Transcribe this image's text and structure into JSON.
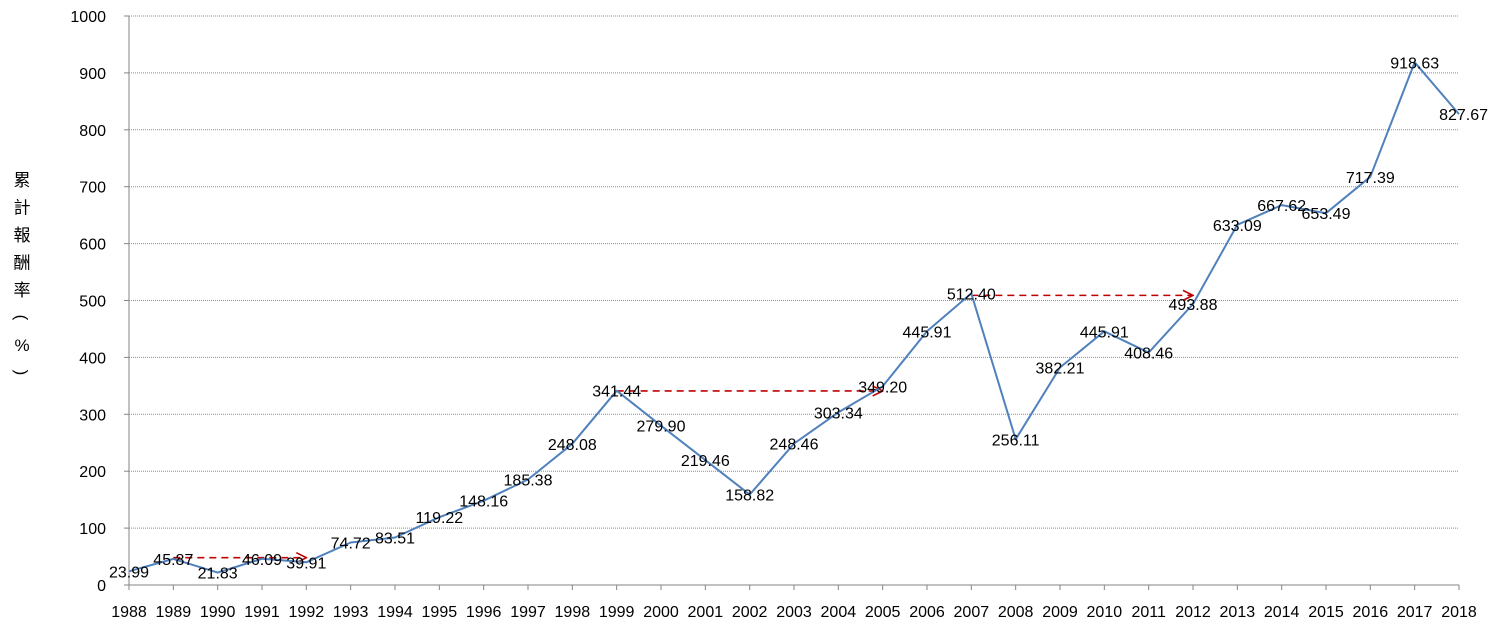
{
  "chart_data": {
    "type": "line",
    "ylabel": "累計報酬率(%)",
    "xlabel": "",
    "title": "",
    "ylim": [
      0,
      1000
    ],
    "yticks": [
      0,
      100,
      200,
      300,
      400,
      500,
      600,
      700,
      800,
      900,
      1000
    ],
    "grid": true,
    "legend": "none",
    "line_color": "#4f81bd",
    "arrow_color": "#c00000",
    "categories": [
      "1988",
      "1989",
      "1990",
      "1991",
      "1992",
      "1993",
      "1994",
      "1995",
      "1996",
      "1997",
      "1998",
      "1999",
      "2000",
      "2001",
      "2002",
      "2003",
      "2004",
      "2005",
      "2006",
      "2007",
      "2008",
      "2009",
      "2010",
      "2011",
      "2012",
      "2013",
      "2014",
      "2015",
      "2016",
      "2017",
      "2018"
    ],
    "values": [
      23.99,
      45.87,
      21.83,
      46.09,
      39.91,
      74.72,
      83.51,
      119.22,
      148.16,
      185.38,
      248.08,
      341.44,
      279.9,
      219.46,
      158.82,
      248.46,
      303.34,
      349.2,
      445.91,
      512.4,
      256.11,
      382.21,
      445.91,
      408.46,
      493.88,
      633.09,
      667.62,
      653.49,
      717.39,
      918.63,
      827.67
    ],
    "labels": [
      "23.99",
      "45.87",
      "21.83",
      "46.09",
      "39.91",
      "74.72",
      "83.51",
      "119.22",
      "148.16",
      "185.38",
      "248.08",
      "341.44",
      "279.90",
      "219.46",
      "158.82",
      "248.46",
      "303.34",
      "349.20",
      "445.91",
      "512.40",
      "256.11",
      "382.21",
      "445.91",
      "408.46",
      "493.88",
      "633.09",
      "667.62",
      "653.49",
      "717.39",
      "918.63",
      "827.67"
    ],
    "annotations": [
      {
        "type": "dashed-arrow",
        "from": "1989",
        "to": "1992",
        "value": 48
      },
      {
        "type": "dashed-arrow",
        "from": "1999",
        "to": "2005",
        "value": 341
      },
      {
        "type": "dashed-arrow",
        "from": "2007",
        "to": "2012",
        "value": 509
      }
    ]
  }
}
